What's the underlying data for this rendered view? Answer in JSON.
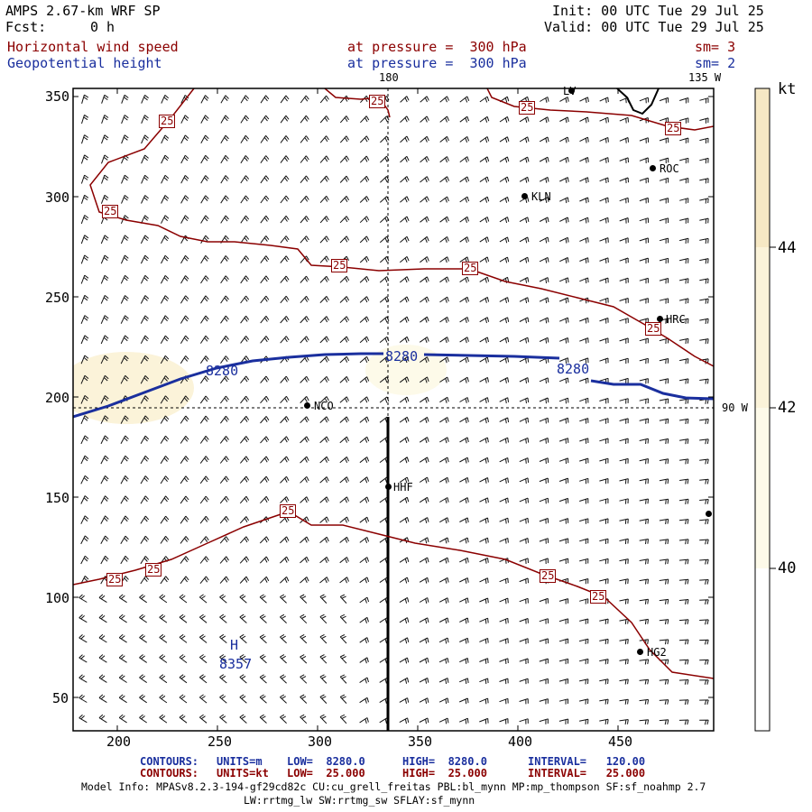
{
  "header": {
    "model": "AMPS 2.67-km WRF SP",
    "fcst_label": "Fcst:",
    "fcst_value": "0 h",
    "init": "Init: 00 UTC Tue 29 Jul 25",
    "valid": "Valid: 00 UTC Tue 29 Jul 25"
  },
  "fields": [
    {
      "name": "Horizontal wind speed",
      "level": "at pressure =  300 hPa",
      "sm": "sm= 3",
      "color": "#8b0000"
    },
    {
      "name": "Geopotential height",
      "level": "at pressure =  300 hPa",
      "sm": "sm= 2",
      "color": "#1a2f9e"
    }
  ],
  "map": {
    "x_ticks": [
      "200",
      "250",
      "300",
      "350",
      "400",
      "450"
    ],
    "y_ticks": [
      "350",
      "300",
      "250",
      "200",
      "150",
      "100",
      "50"
    ],
    "meridian_labels": [
      "180",
      "135 W",
      "90 W"
    ],
    "stations": [
      "LV",
      "ROC",
      "KLN",
      "HRC",
      "NCO",
      "HHF",
      "HG2"
    ],
    "wind_contour_labels": [
      "25",
      "25",
      "25",
      "25",
      "25",
      "25",
      "25",
      "25",
      "25",
      "25",
      "25",
      "25",
      "25"
    ],
    "height_contour_labels": [
      "8280",
      "8280",
      "8280"
    ],
    "high_marker": "H",
    "high_value": "8357"
  },
  "colorbar": {
    "unit": "kt",
    "labels": [
      "44",
      "42",
      "40"
    ],
    "colors": [
      "#f6e8c4",
      "#fbf3d9",
      "#fdfae9",
      "#ffffff"
    ]
  },
  "contours_info": [
    {
      "label": "CONTOURS:",
      "units": "UNITS=m",
      "low": "LOW=  8280.0",
      "high": "HIGH=  8280.0",
      "interval": "INTERVAL=   120.00",
      "color": "#1a2f9e"
    },
    {
      "label": "CONTOURS:",
      "units": "UNITS=kt",
      "low": "LOW=  25.000",
      "high": "HIGH=  25.000",
      "interval": "INTERVAL=   25.000",
      "color": "#8b0000"
    }
  ],
  "model_info": {
    "line1": "Model Info: MPASv8.2.3-194-gf29cd82c CU:cu_grell_freitas PBL:bl_mynn MP:mp_thompson SF:sf_noahmp 2.7",
    "line2": "LW:rrtmg_lw SW:rrtmg_sw SFLAY:sf_mynn"
  }
}
